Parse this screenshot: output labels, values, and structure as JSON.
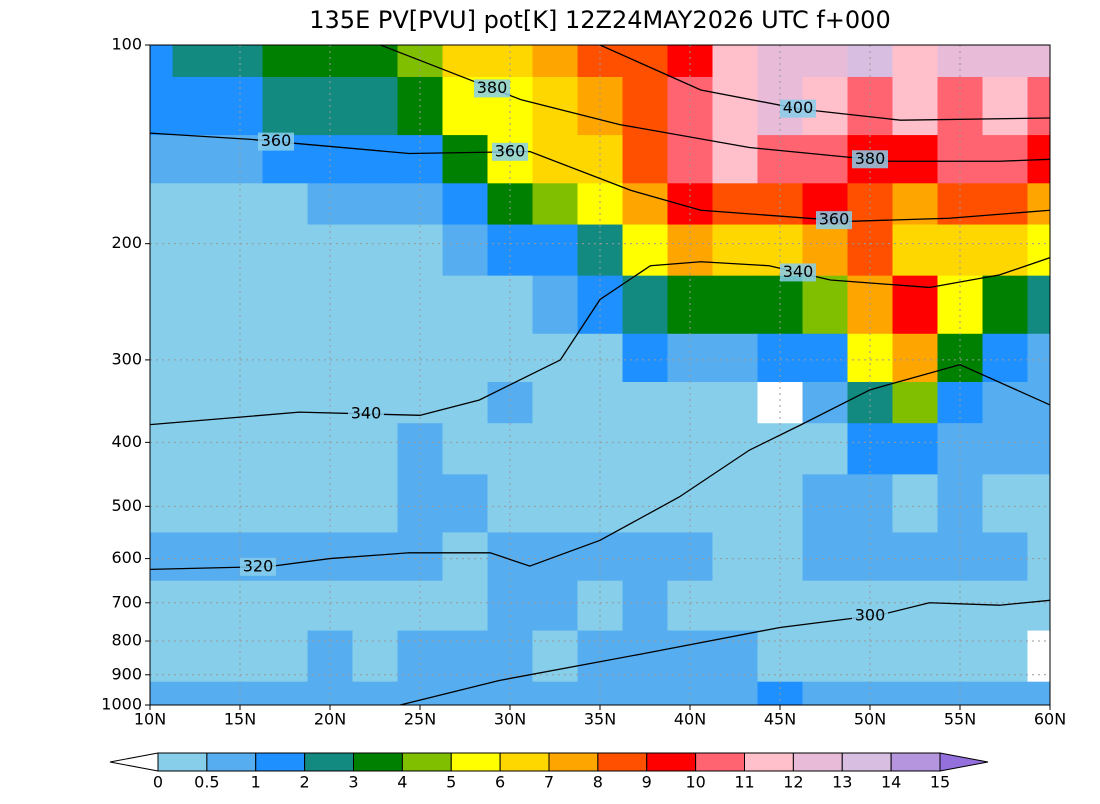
{
  "chart_data": {
    "type": "cross-section",
    "title": "135E PV[PVU] pot[K] 12Z24MAY2026 UTC f+000",
    "xlim": [
      10,
      60
    ],
    "xticks": [
      {
        "value": 10,
        "label": "10N"
      },
      {
        "value": 15,
        "label": "15N"
      },
      {
        "value": 20,
        "label": "20N"
      },
      {
        "value": 25,
        "label": "25N"
      },
      {
        "value": 30,
        "label": "30N"
      },
      {
        "value": 35,
        "label": "35N"
      },
      {
        "value": 40,
        "label": "40N"
      },
      {
        "value": 45,
        "label": "45N"
      },
      {
        "value": 50,
        "label": "50N"
      },
      {
        "value": 55,
        "label": "55N"
      },
      {
        "value": 60,
        "label": "60N"
      }
    ],
    "ylim": [
      1000,
      100
    ],
    "y_log": true,
    "yticks": [
      100,
      200,
      300,
      400,
      500,
      600,
      700,
      800,
      900,
      1000
    ],
    "grid": true,
    "field": {
      "x": [
        10,
        12.5,
        15,
        17.5,
        20,
        22.5,
        25,
        27.5,
        30,
        32.5,
        35,
        37.5,
        40,
        42.5,
        45,
        47.5,
        50,
        52.5,
        55,
        57.5,
        60
      ],
      "p": [
        100,
        125,
        150,
        175,
        200,
        250,
        300,
        350,
        400,
        500,
        600,
        700,
        850,
        1000
      ],
      "values": [
        [
          1.5,
          2,
          2.5,
          3,
          3,
          3.5,
          4,
          6,
          6,
          7,
          8,
          8,
          9,
          11,
          12,
          12,
          13,
          11,
          12,
          12,
          12
        ],
        [
          1,
          1,
          1.5,
          2,
          2,
          2.5,
          3,
          5,
          5.5,
          6,
          7,
          8,
          10,
          11,
          12,
          11,
          10,
          11,
          10,
          11,
          10
        ],
        [
          0.5,
          0.7,
          0.8,
          1,
          1,
          1,
          1.5,
          3,
          5,
          6,
          6.5,
          8,
          10,
          11,
          10,
          10,
          9,
          9,
          10,
          10,
          9
        ],
        [
          0.3,
          0.3,
          0.4,
          0.4,
          0.5,
          0.5,
          0.8,
          1.5,
          3,
          4,
          5,
          7,
          9,
          8,
          8,
          9,
          8,
          7,
          8,
          8,
          7
        ],
        [
          0.3,
          0.3,
          0.3,
          0.3,
          0.3,
          0.3,
          0.4,
          0.8,
          1,
          1,
          2,
          5,
          7,
          6,
          6,
          7,
          8,
          6,
          6,
          6,
          5
        ],
        [
          0.3,
          0.3,
          0.3,
          0.3,
          0.3,
          0.3,
          0.3,
          0.3,
          0.4,
          0.5,
          1,
          2.5,
          3.5,
          3.5,
          3.5,
          4,
          7,
          9,
          5,
          3,
          2.5
        ],
        [
          0.3,
          0.3,
          0.3,
          0.3,
          0.3,
          0.3,
          0.3,
          0.3,
          0.3,
          0.3,
          0.4,
          1,
          0.8,
          0.8,
          1,
          1.5,
          5,
          7,
          3,
          1,
          0.8
        ],
        [
          0.3,
          0.3,
          0.3,
          0.3,
          0.3,
          0.3,
          0.4,
          0.4,
          0.6,
          0.3,
          0.3,
          0.3,
          0.3,
          0.3,
          -0.1,
          0.6,
          2,
          4,
          1.5,
          0.6,
          0.6
        ],
        [
          0.3,
          0.3,
          0.3,
          0.3,
          0.3,
          0.3,
          0.6,
          0.4,
          0.4,
          0.3,
          0.3,
          0.3,
          0.3,
          0.3,
          0.3,
          0.4,
          1.2,
          1.5,
          0.6,
          0.6,
          0.6
        ],
        [
          0.3,
          0.3,
          0.3,
          0.3,
          0.3,
          0.3,
          0.6,
          0.8,
          0.4,
          0.3,
          0.3,
          0.3,
          0.4,
          0.4,
          0.4,
          0.6,
          0.8,
          0.4,
          0.6,
          0.4,
          0.4
        ],
        [
          0.6,
          0.6,
          0.6,
          0.6,
          0.6,
          0.6,
          0.6,
          0.4,
          0.6,
          0.6,
          0.6,
          0.6,
          0.6,
          0.4,
          0.4,
          0.6,
          0.6,
          0.6,
          0.6,
          0.6,
          0.4
        ],
        [
          0.4,
          0.4,
          0.4,
          0.4,
          0.4,
          0.4,
          0.4,
          0.4,
          0.6,
          0.6,
          0.4,
          0.6,
          0.4,
          0.4,
          0.4,
          0.4,
          0.4,
          0.4,
          0.4,
          0.4,
          0.4
        ],
        [
          0.4,
          0.4,
          0.4,
          0.4,
          0.6,
          0.4,
          0.6,
          0.6,
          0.6,
          0.4,
          0.6,
          0.6,
          0.6,
          0.6,
          0.4,
          0.4,
          0.4,
          0.4,
          0.4,
          0.3,
          -0.1
        ],
        [
          0.6,
          0.6,
          0.6,
          0.6,
          0.6,
          0.6,
          0.6,
          0.6,
          0.6,
          0.6,
          0.6,
          0.6,
          0.6,
          0.6,
          1.2,
          0.6,
          0.6,
          0.6,
          0.6,
          0.6,
          0.6
        ]
      ]
    },
    "colorbar": {
      "levels": [
        0,
        0.5,
        1,
        2,
        3,
        4,
        5,
        6,
        7,
        8,
        9,
        10,
        11,
        12,
        13,
        14,
        15
      ],
      "colors": [
        "#ffffff",
        "#87ceeb",
        "#56aef0",
        "#1e90ff",
        "#138a80",
        "#008000",
        "#80be00",
        "#ffff00",
        "#ffd700",
        "#ffa500",
        "#ff5000",
        "#ff0000",
        "#ff6470",
        "#ffc0cb",
        "#e8bcd8",
        "#d8bee0",
        "#b495de",
        "#9370db"
      ]
    },
    "contours": [
      {
        "level": 300,
        "x": [
          23.9,
          29.4,
          37.2,
          45,
          50.6,
          53.3,
          57.2,
          60
        ],
        "p": [
          1000,
          918,
          838,
          763,
          730,
          700,
          706,
          694
        ]
      },
      {
        "level": 320,
        "x": [
          10,
          16.6,
          20,
          24.4,
          28.9,
          31.1,
          35,
          39.4,
          43.3,
          46.1,
          50,
          55,
          60
        ],
        "p": [
          623,
          617,
          600,
          588,
          588,
          616,
          563,
          484,
          411,
          377,
          333,
          305,
          351
        ]
      },
      {
        "level": 340,
        "x": [
          10,
          18.3,
          25,
          28.3,
          32.8,
          35,
          37.8,
          40.6,
          44.4,
          47.8,
          53.3,
          57.2,
          60
        ],
        "p": [
          376,
          360,
          364,
          345,
          300,
          243,
          216,
          213,
          216,
          227,
          233,
          223,
          210
        ]
      },
      {
        "level": 360,
        "x": [
          10,
          15.6,
          24.4,
          31.1,
          36.7,
          40.6,
          48.9,
          54.4,
          60
        ],
        "p": [
          136,
          139,
          146,
          145,
          166,
          178,
          185,
          183,
          178
        ]
      },
      {
        "level": 380,
        "x": [
          22.8,
          26.7,
          30.6,
          36.1,
          43.3,
          51.1,
          57.2,
          60
        ],
        "p": [
          100,
          110,
          121,
          132,
          143,
          150,
          150,
          149
        ]
      },
      {
        "level": 400,
        "x": [
          35,
          40.6,
          46.1,
          51.7,
          60
        ],
        "p": [
          100,
          117,
          125,
          130,
          129
        ]
      }
    ]
  }
}
